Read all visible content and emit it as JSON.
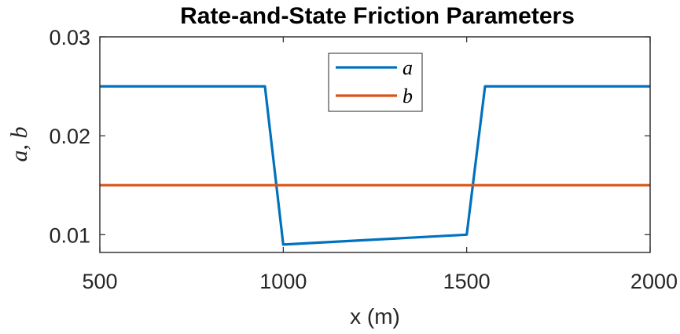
{
  "chart_data": {
    "type": "line",
    "title": "Rate-and-State Friction Parameters",
    "xlabel": "x (m)",
    "ylabel": "a, b",
    "xlim": [
      500,
      2000
    ],
    "ylim": [
      0.0082,
      0.03
    ],
    "x_ticks": [
      500,
      1000,
      1500,
      2000
    ],
    "x_tick_labels": [
      "500",
      "1000",
      "1500",
      "2000"
    ],
    "y_ticks": [
      0.01,
      0.02,
      0.03
    ],
    "y_tick_labels": [
      "0.01",
      "0.02",
      "0.03"
    ],
    "grid": false,
    "legend_position": "top-center",
    "series": [
      {
        "name": "a",
        "color": "#0072BD",
        "x": [
          500,
          950,
          1000,
          1500,
          1550,
          2000
        ],
        "y": [
          0.025,
          0.025,
          0.009,
          0.01,
          0.025,
          0.025
        ]
      },
      {
        "name": "b",
        "color": "#D95319",
        "x": [
          500,
          2000
        ],
        "y": [
          0.015,
          0.015
        ]
      }
    ]
  }
}
